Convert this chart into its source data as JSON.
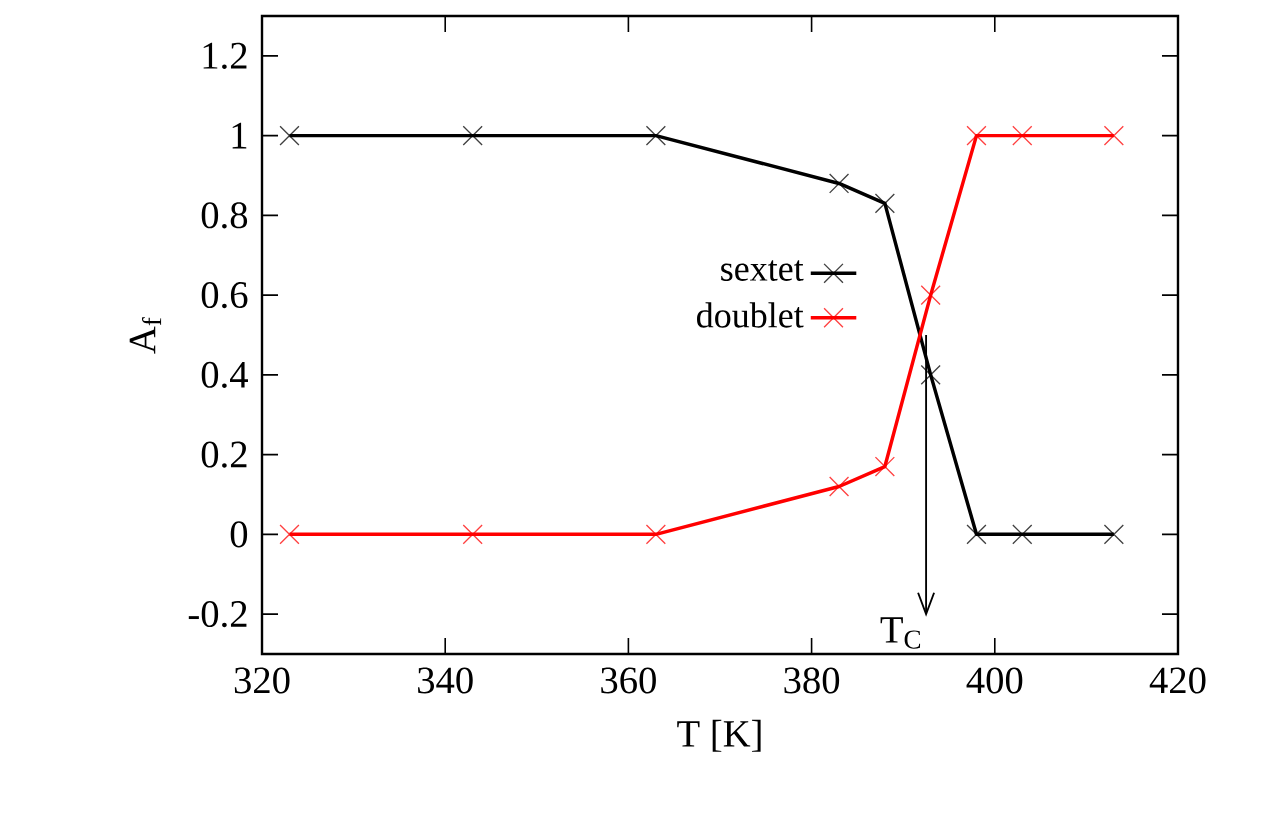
{
  "chart_data": {
    "type": "line",
    "xlabel": "T [K]",
    "ylabel": "A$_{f}$",
    "xlim": [
      320,
      420
    ],
    "ylim": [
      -0.3,
      1.3
    ],
    "xticks": [
      320,
      340,
      360,
      380,
      400,
      420
    ],
    "yticks": [
      "-0.2",
      0,
      0.2,
      0.4,
      0.6,
      0.8,
      1,
      1.2
    ],
    "marker": "cross",
    "line_style": "solid",
    "legend": "right",
    "grid": false,
    "series": [
      {
        "name": "sextet",
        "color": "#000000",
        "x": [
          323,
          343,
          363,
          383,
          388,
          393,
          398,
          403,
          413
        ],
        "values": [
          1,
          1,
          1,
          0.88,
          0.83,
          0.4,
          0,
          0,
          0
        ]
      },
      {
        "name": "doublet",
        "color": "#ff0000",
        "x": [
          323,
          343,
          363,
          383,
          388,
          393,
          398,
          403,
          413
        ],
        "values": [
          0,
          0,
          0,
          0.12,
          0.17,
          0.6,
          1,
          1,
          1
        ]
      },
      {
        "type": "line",
        "color": "#000000",
        "marker": "none",
        "x": [
          392.5,
          392.5
        ],
        "values": [
          0.5,
          -0.2
        ]
      }
    ],
    "annotations": [
      {
        "text": "T$_{C}$",
        "x": 392.5,
        "y": -0.2
      }
    ]
  }
}
